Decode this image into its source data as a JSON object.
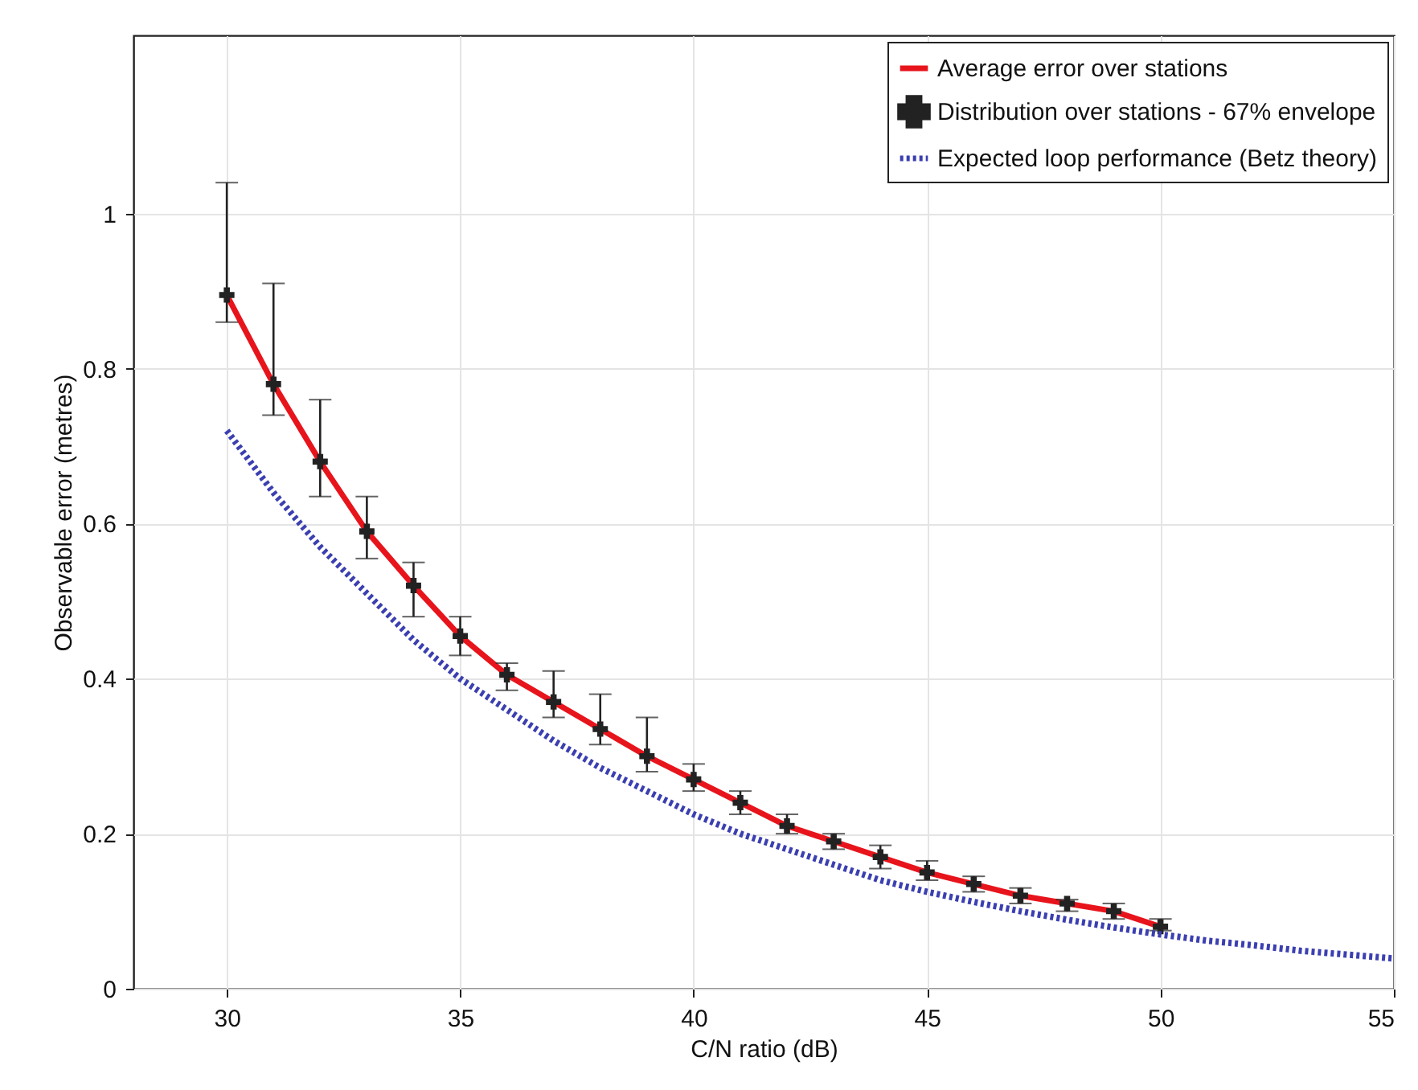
{
  "chart_data": {
    "type": "line",
    "xlabel": "C/N ratio (dB)",
    "ylabel": "Observable error (metres)",
    "xlim": [
      28,
      55
    ],
    "ylim": [
      0,
      1.23
    ],
    "xticks": [
      30,
      35,
      40,
      45,
      50,
      55
    ],
    "yticks": [
      0,
      0.2,
      0.4,
      0.6,
      0.8,
      1
    ],
    "grid": true,
    "legend": "top right",
    "series": [
      {
        "name": "Average error over stations",
        "color": "#e8141c",
        "line_style": "solid",
        "x": [
          30,
          31,
          32,
          33,
          34,
          35,
          36,
          37,
          38,
          39,
          40,
          41,
          42,
          43,
          44,
          45,
          46,
          47,
          48,
          49,
          50
        ],
        "values": [
          0.895,
          0.78,
          0.68,
          0.59,
          0.52,
          0.455,
          0.405,
          0.37,
          0.335,
          0.3,
          0.27,
          0.24,
          0.21,
          0.19,
          0.17,
          0.15,
          0.135,
          0.12,
          0.11,
          0.1,
          0.08
        ]
      },
      {
        "name": "Distribution over stations - 67% envelope",
        "color": "#222222",
        "type": "scatter",
        "marker": "cross",
        "x": [
          30,
          31,
          32,
          33,
          34,
          35,
          36,
          37,
          38,
          39,
          40,
          41,
          42,
          43,
          44,
          45,
          46,
          47,
          48,
          49,
          50
        ],
        "values": [
          0.895,
          0.78,
          0.68,
          0.59,
          0.52,
          0.455,
          0.405,
          0.37,
          0.335,
          0.3,
          0.27,
          0.24,
          0.21,
          0.19,
          0.17,
          0.15,
          0.135,
          0.12,
          0.11,
          0.1,
          0.08
        ],
        "errors": [
          [
            0.86,
            1.04
          ],
          [
            0.74,
            0.91
          ],
          [
            0.635,
            0.76
          ],
          [
            0.555,
            0.635
          ],
          [
            0.48,
            0.55
          ],
          [
            0.43,
            0.48
          ],
          [
            0.385,
            0.42
          ],
          [
            0.35,
            0.41
          ],
          [
            0.315,
            0.38
          ],
          [
            0.28,
            0.35
          ],
          [
            0.255,
            0.29
          ],
          [
            0.225,
            0.255
          ],
          [
            0.2,
            0.225
          ],
          [
            0.18,
            0.2
          ],
          [
            0.155,
            0.185
          ],
          [
            0.14,
            0.165
          ],
          [
            0.125,
            0.145
          ],
          [
            0.11,
            0.13
          ],
          [
            0.1,
            0.115
          ],
          [
            0.09,
            0.11
          ],
          [
            0.075,
            0.09
          ]
        ]
      },
      {
        "name": "Expected loop performance (Betz theory)",
        "color": "#3b3fb0",
        "line_style": "dotted",
        "x": [
          30,
          31,
          32,
          33,
          34,
          35,
          36,
          37,
          38,
          39,
          40,
          41,
          42,
          43,
          44,
          45,
          46,
          47,
          48,
          49,
          50,
          51,
          52,
          53,
          54,
          55
        ],
        "values": [
          0.72,
          0.64,
          0.57,
          0.51,
          0.45,
          0.4,
          0.36,
          0.32,
          0.285,
          0.255,
          0.225,
          0.2,
          0.18,
          0.16,
          0.14,
          0.125,
          0.112,
          0.1,
          0.089,
          0.079,
          0.07,
          0.062,
          0.056,
          0.049,
          0.044,
          0.039
        ]
      }
    ]
  }
}
